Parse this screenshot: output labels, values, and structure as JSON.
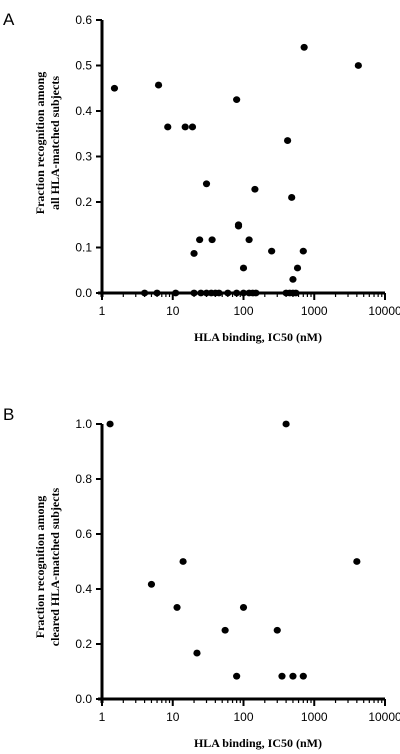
{
  "chart_data": [
    {
      "panel_label": "A",
      "type": "scatter",
      "xlabel": "HLA binding, IC50 (nM)",
      "ylabel_lines": [
        "Fraction recognition among",
        "all HLA-matched subjects"
      ],
      "xscale": "log",
      "xlim": [
        1,
        10000
      ],
      "ylim": [
        0,
        0.6
      ],
      "xticks": [
        1,
        10,
        100,
        1000,
        10000
      ],
      "xtick_labels": [
        "1",
        "10",
        "100",
        "1000",
        "10000"
      ],
      "yticks": [
        0.0,
        0.1,
        0.2,
        0.3,
        0.4,
        0.5,
        0.6
      ],
      "ytick_labels": [
        "0.0",
        "0.1",
        "0.2",
        "0.3",
        "0.4",
        "0.5",
        "0.6"
      ],
      "grid": false,
      "points": [
        {
          "x": 1.5,
          "y": 0.45
        },
        {
          "x": 6.3,
          "y": 0.457
        },
        {
          "x": 8.5,
          "y": 0.365
        },
        {
          "x": 15,
          "y": 0.365
        },
        {
          "x": 19,
          "y": 0.365
        },
        {
          "x": 80,
          "y": 0.425
        },
        {
          "x": 720,
          "y": 0.54
        },
        {
          "x": 4200,
          "y": 0.5
        },
        {
          "x": 420,
          "y": 0.335
        },
        {
          "x": 30,
          "y": 0.24
        },
        {
          "x": 145,
          "y": 0.228
        },
        {
          "x": 480,
          "y": 0.21
        },
        {
          "x": 85,
          "y": 0.15
        },
        {
          "x": 85,
          "y": 0.147
        },
        {
          "x": 24,
          "y": 0.117
        },
        {
          "x": 36,
          "y": 0.117
        },
        {
          "x": 120,
          "y": 0.117
        },
        {
          "x": 20,
          "y": 0.087
        },
        {
          "x": 250,
          "y": 0.092
        },
        {
          "x": 700,
          "y": 0.092
        },
        {
          "x": 100,
          "y": 0.055
        },
        {
          "x": 580,
          "y": 0.055
        },
        {
          "x": 500,
          "y": 0.03
        },
        {
          "x": 4,
          "y": 0
        },
        {
          "x": 6,
          "y": 0
        },
        {
          "x": 11,
          "y": 0
        },
        {
          "x": 20,
          "y": 0
        },
        {
          "x": 25,
          "y": 0
        },
        {
          "x": 30,
          "y": 0
        },
        {
          "x": 35,
          "y": 0
        },
        {
          "x": 40,
          "y": 0
        },
        {
          "x": 45,
          "y": 0
        },
        {
          "x": 60,
          "y": 0
        },
        {
          "x": 80,
          "y": 0
        },
        {
          "x": 100,
          "y": 0
        },
        {
          "x": 120,
          "y": 0
        },
        {
          "x": 135,
          "y": 0
        },
        {
          "x": 150,
          "y": 0
        },
        {
          "x": 400,
          "y": 0
        },
        {
          "x": 450,
          "y": 0
        },
        {
          "x": 500,
          "y": 0
        },
        {
          "x": 550,
          "y": 0
        }
      ]
    },
    {
      "panel_label": "B",
      "type": "scatter",
      "xlabel": "HLA binding, IC50 (nM)",
      "ylabel_lines": [
        "Fraction recognition among",
        "cleared HLA-matched subjects"
      ],
      "xscale": "log",
      "xlim": [
        1,
        10000
      ],
      "ylim": [
        0,
        1.0
      ],
      "xticks": [
        1,
        10,
        100,
        1000,
        10000
      ],
      "xtick_labels": [
        "1",
        "10",
        "100",
        "1000",
        "10000"
      ],
      "yticks": [
        0.0,
        0.2,
        0.4,
        0.6,
        0.8,
        1.0
      ],
      "ytick_labels": [
        "0.0",
        "0.2",
        "0.4",
        "0.6",
        "0.8",
        "1.0"
      ],
      "grid": false,
      "points": [
        {
          "x": 1.3,
          "y": 1.0
        },
        {
          "x": 400,
          "y": 1.0
        },
        {
          "x": 14,
          "y": 0.5
        },
        {
          "x": 4000,
          "y": 0.5
        },
        {
          "x": 5,
          "y": 0.417
        },
        {
          "x": 11.5,
          "y": 0.333
        },
        {
          "x": 100,
          "y": 0.333
        },
        {
          "x": 55,
          "y": 0.25
        },
        {
          "x": 300,
          "y": 0.25
        },
        {
          "x": 22,
          "y": 0.167
        },
        {
          "x": 80,
          "y": 0.083
        },
        {
          "x": 350,
          "y": 0.083
        },
        {
          "x": 500,
          "y": 0.083
        },
        {
          "x": 700,
          "y": 0.083
        }
      ]
    }
  ]
}
